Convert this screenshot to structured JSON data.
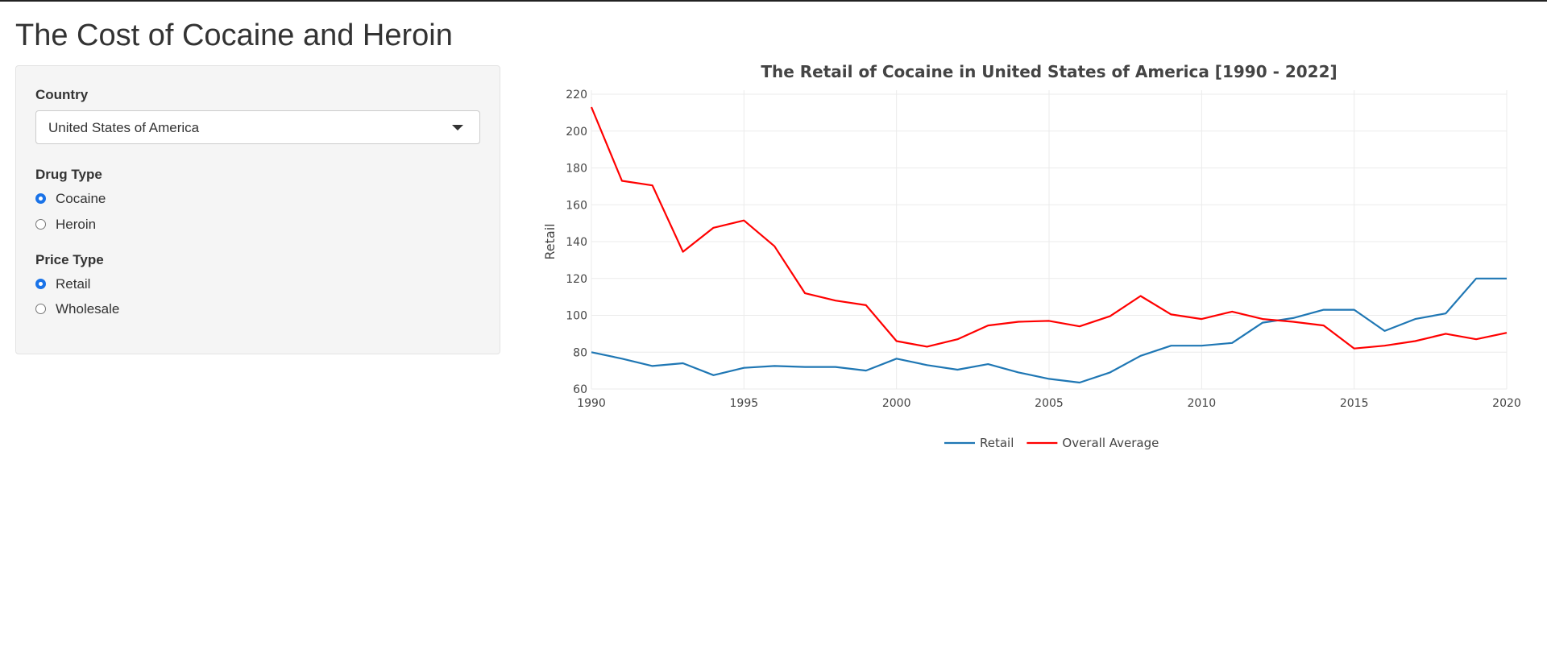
{
  "app": {
    "title": "The Cost of Cocaine and Heroin"
  },
  "sidebar": {
    "country": {
      "label": "Country",
      "selected": "United States of America"
    },
    "drug_type": {
      "label": "Drug Type",
      "options": [
        {
          "label": "Cocaine",
          "checked": true
        },
        {
          "label": "Heroin",
          "checked": false
        }
      ]
    },
    "price_type": {
      "label": "Price Type",
      "options": [
        {
          "label": "Retail",
          "checked": true
        },
        {
          "label": "Wholesale",
          "checked": false
        }
      ]
    }
  },
  "colors": {
    "retail": "#1f77b4",
    "average": "#ff0000",
    "radio_accent": "#1a73e8",
    "panel_bg": "#f5f5f5"
  },
  "icons": {
    "select_caret": "caret-down-icon"
  },
  "chart_data": {
    "type": "line",
    "title": "The Retail of Cocaine in United States of America [1990 - 2022]",
    "xlabel": "",
    "ylabel": "Retail",
    "xlim": [
      1990,
      2020
    ],
    "ylim": [
      60,
      220
    ],
    "x_ticks": [
      1990,
      1995,
      2000,
      2005,
      2010,
      2015,
      2020
    ],
    "y_ticks": [
      60,
      80,
      100,
      120,
      140,
      160,
      180,
      200,
      220
    ],
    "grid": true,
    "legend_position": "bottom-center",
    "x": [
      1990,
      1991,
      1992,
      1993,
      1994,
      1995,
      1996,
      1997,
      1998,
      1999,
      2000,
      2001,
      2002,
      2003,
      2004,
      2005,
      2006,
      2007,
      2008,
      2009,
      2010,
      2011,
      2012,
      2013,
      2014,
      2015,
      2016,
      2017,
      2018,
      2019,
      2020
    ],
    "series": [
      {
        "name": "Retail",
        "color": "#1f77b4",
        "values": [
          80,
          76.5,
          72.5,
          74,
          67.5,
          71.5,
          72.5,
          72,
          72,
          70,
          76.5,
          73,
          70.5,
          73.5,
          69,
          65.5,
          63.5,
          69,
          78,
          83.5,
          83.5,
          85,
          96,
          98.5,
          103,
          103,
          91.5,
          98,
          101,
          120,
          120
        ]
      },
      {
        "name": "Overall Average",
        "color": "#ff0000",
        "values": [
          213,
          173,
          170.5,
          134.5,
          147.5,
          151.5,
          137.5,
          112,
          108,
          105.5,
          86,
          83,
          87,
          94.5,
          96.5,
          97,
          94,
          99.5,
          110.5,
          100.5,
          98,
          102,
          98,
          96.5,
          94.5,
          82,
          83.5,
          86,
          90,
          87,
          90.5
        ]
      }
    ]
  }
}
